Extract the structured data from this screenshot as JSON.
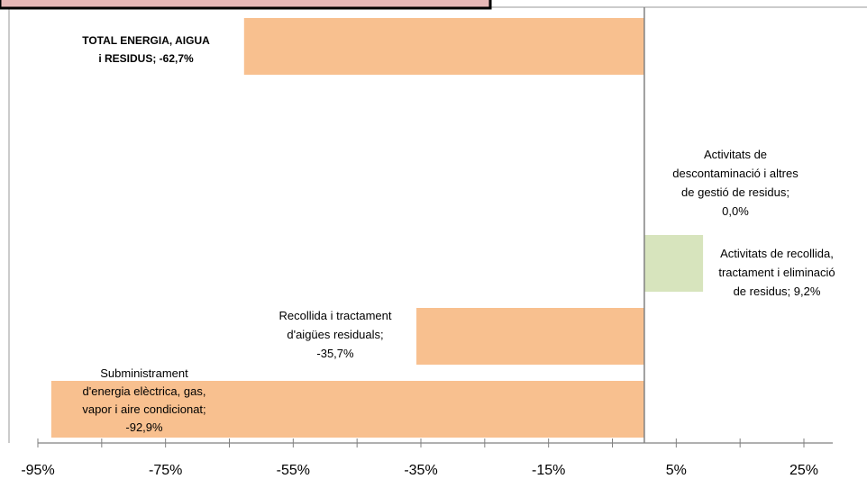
{
  "chart_data": {
    "type": "bar",
    "orientation": "horizontal",
    "xlim": [
      -95,
      25
    ],
    "x_ticks": [
      "-95%",
      "-75%",
      "-55%",
      "-35%",
      "-15%",
      "5%",
      "25%"
    ],
    "x_tick_values": [
      -95,
      -75,
      -55,
      -35,
      -15,
      5,
      25
    ],
    "categories": [
      "TOTAL ENERGIA, AIGUA i RESIDUS",
      "Activitats de descontaminació i altres de gestió de residus",
      "Activitats de recollida, tractament i eliminació de residus",
      "Recollida i tractament d'aigües residuals",
      "Subministrament d'energia elèctrica, gas, vapor i aire condicionat"
    ],
    "values": [
      -62.7,
      0.0,
      9.2,
      -35.7,
      -92.9
    ],
    "labels": [
      [
        "TOTAL  ENERGIA,  AIGUA",
        "i RESIDUS;  -62,7%"
      ],
      [
        "Activitats de",
        "descontaminació  i altres",
        "de gestió de residus;",
        "0,0%"
      ],
      [
        "Activitats de recollida,",
        "tractament  i eliminació",
        "de residus; 9,2%"
      ],
      [
        "Recollida i tractament",
        "d'aigües residuals;",
        "-35,7%"
      ],
      [
        "Subministrament",
        "d'energia  elèctrica, gas,",
        "vapor i aire condicionat;",
        "-92,9%"
      ]
    ],
    "bold_first": true,
    "colors": {
      "negative": "#F8C08F",
      "positive": "#D7E4BD",
      "title_box": "#E6B8B7",
      "axis": "#808080"
    },
    "grid": false,
    "legend": "none"
  }
}
